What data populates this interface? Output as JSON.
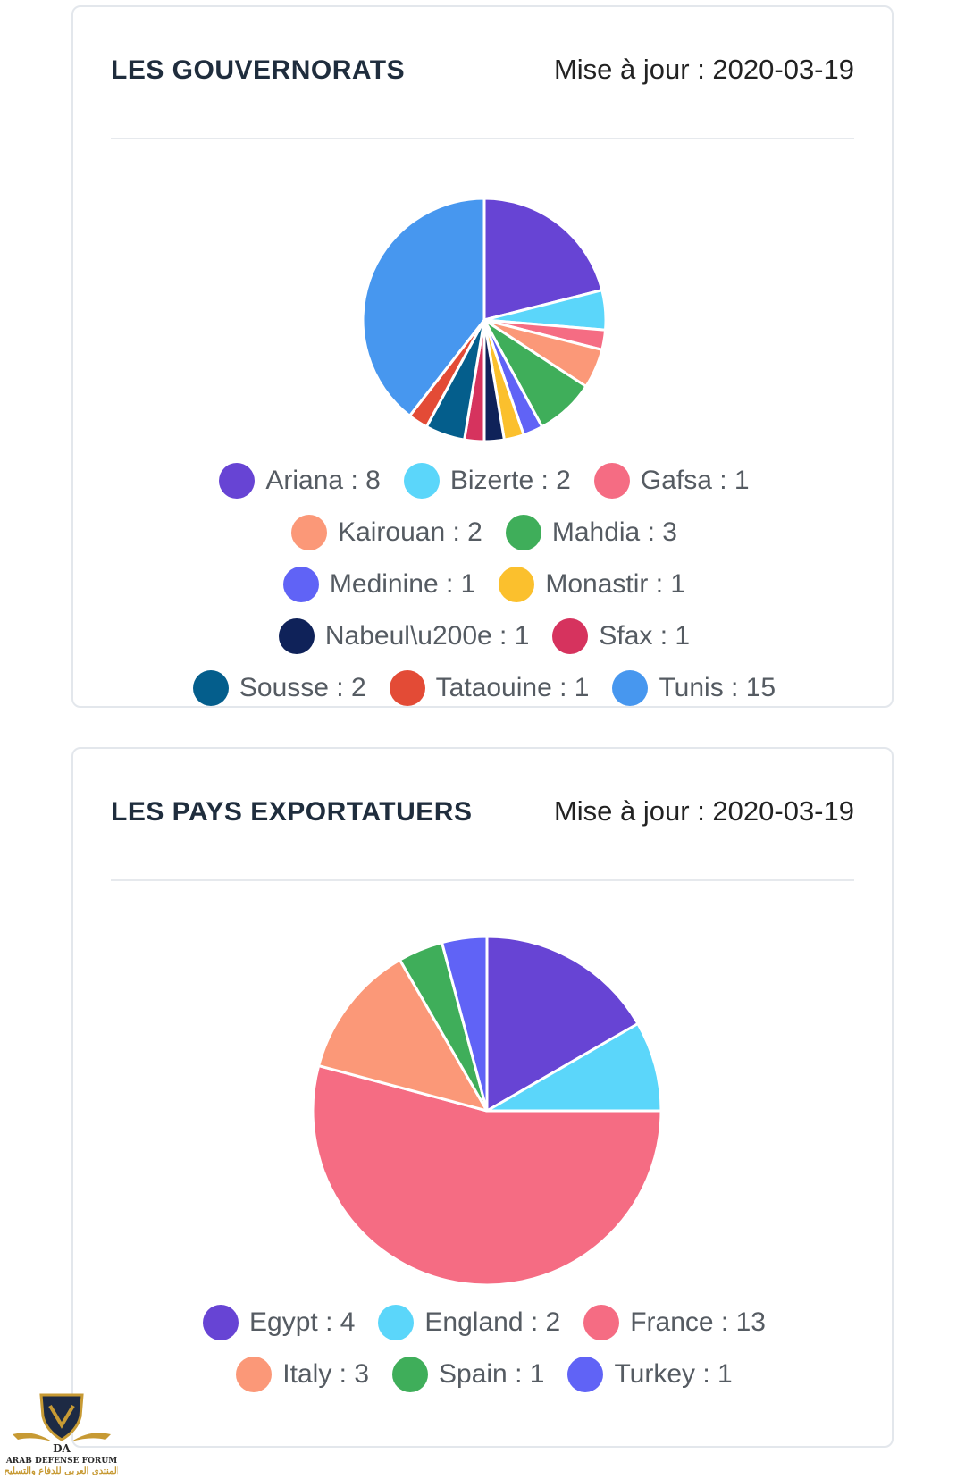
{
  "cards": [
    {
      "title": "LES GOUVERNORATS",
      "updated": "Mise à jour : 2020-03-19"
    },
    {
      "title": "LES PAYS EXPORTATUERS",
      "updated": "Mise à jour : 2020-03-19"
    }
  ],
  "chart_data": [
    {
      "type": "pie",
      "title": "LES GOUVERNORATS",
      "categories": [
        "Ariana",
        "Bizerte",
        "Gafsa",
        "Kairouan",
        "Mahdia",
        "Medinine",
        "Monastir",
        "Nabeul\\u200e",
        "Sfax",
        "Sousse",
        "Tataouine",
        "Tunis"
      ],
      "values": [
        8,
        2,
        1,
        2,
        3,
        1,
        1,
        1,
        1,
        2,
        1,
        15
      ],
      "colors": [
        "#6744d4",
        "#5bd6fa",
        "#f56c83",
        "#fb9878",
        "#3fae5a",
        "#6063f6",
        "#fbc02d",
        "#0f2259",
        "#d6335e",
        "#045e8c",
        "#e34b36",
        "#4797ef"
      ],
      "legend_labels": [
        "Ariana : 8",
        "Bizerte : 2",
        "Gafsa : 1",
        "Kairouan : 2",
        "Mahdia : 3",
        "Medinine : 1",
        "Monastir : 1",
        "Nabeul\\u200e : 1",
        "Sfax : 1",
        "Sousse : 2",
        "Tataouine : 1",
        "Tunis : 15"
      ],
      "legend": "bottom"
    },
    {
      "type": "pie",
      "title": "LES PAYS EXPORTATUERS",
      "categories": [
        "Egypt",
        "England",
        "France",
        "Italy",
        "Spain",
        "Turkey"
      ],
      "values": [
        4,
        2,
        13,
        3,
        1,
        1
      ],
      "colors": [
        "#6744d4",
        "#5bd6fa",
        "#f56c83",
        "#fb9878",
        "#3fae5a",
        "#6063f6"
      ],
      "legend_labels": [
        "Egypt : 4",
        "England : 2",
        "France : 13",
        "Italy : 3",
        "Spain : 1",
        "Turkey : 1"
      ],
      "legend": "bottom"
    }
  ],
  "watermark": {
    "emblem": "DA",
    "line1": "ARAB DEFENSE FORUM",
    "line2": "المنتدى العربي للدفاع والتسليح"
  }
}
